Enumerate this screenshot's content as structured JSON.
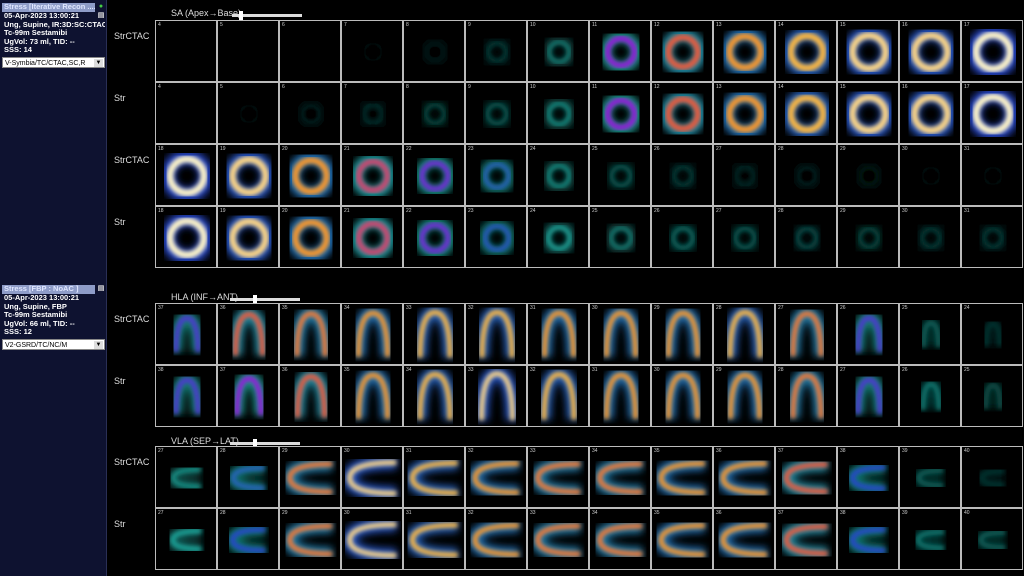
{
  "studies": [
    {
      "header": "Stress [Iterative Recon ....",
      "date": "05-Apr-2023 13:00:21",
      "line2": "Ung, Supine, IR:3D:SC:CTAC",
      "line3": "Tc-99m Sestamibi",
      "line4": "UgVol: 73 ml, TID: --",
      "line5": "SSS: 14",
      "select": "V-Symbia/TC/CTAC,SC,R"
    },
    {
      "header": "Stress [FBP : NoAC ]",
      "date": "05-Apr-2023 13:00:21",
      "line2": "Ung, Supine, FBP",
      "line3": "Tc-99m Sestamibi",
      "line4": "UgVol: 66 ml, TID: --",
      "line5": "SSS: 12",
      "select": "V2-GSRD/TC/NC/M"
    }
  ],
  "sections": [
    {
      "title": "SA (Apex→Base)",
      "slider": 0.1,
      "shape": "ring",
      "rows": [
        {
          "label": "StrCTAC",
          "frames": [
            4,
            5,
            6,
            7,
            8,
            9,
            10,
            11,
            12,
            13,
            14,
            15,
            16,
            17
          ],
          "intensity": [
            0,
            0,
            0,
            0.02,
            0.04,
            0.1,
            0.22,
            0.6,
            0.75,
            0.85,
            0.9,
            0.95,
            0.95,
            1
          ]
        },
        {
          "label": "Str",
          "frames": [
            4,
            5,
            6,
            7,
            8,
            9,
            10,
            11,
            12,
            13,
            14,
            15,
            16,
            17
          ],
          "intensity": [
            0,
            0.02,
            0.05,
            0.08,
            0.12,
            0.15,
            0.25,
            0.6,
            0.75,
            0.85,
            0.9,
            0.95,
            0.95,
            1
          ]
        },
        {
          "label": "StrCTAC",
          "frames": [
            18,
            19,
            20,
            21,
            22,
            23,
            24,
            25,
            26,
            27,
            28,
            29,
            30,
            31
          ],
          "intensity": [
            1,
            0.95,
            0.85,
            0.7,
            0.55,
            0.4,
            0.25,
            0.15,
            0.1,
            0.07,
            0.05,
            0.03,
            0.02,
            0.02
          ]
        },
        {
          "label": "Str",
          "frames": [
            18,
            19,
            20,
            21,
            22,
            23,
            24,
            25,
            26,
            27,
            28,
            29,
            30,
            31
          ],
          "intensity": [
            1,
            0.95,
            0.85,
            0.7,
            0.55,
            0.42,
            0.3,
            0.22,
            0.18,
            0.15,
            0.13,
            0.12,
            0.1,
            0.1
          ]
        }
      ]
    },
    {
      "title": "HLA (INF→ANT)",
      "slider": 0.35,
      "shape": "arch",
      "rows": [
        {
          "label": "StrCTAC",
          "frames": [
            37,
            36,
            35,
            34,
            33,
            32,
            31,
            30,
            29,
            28,
            27,
            26,
            25,
            24
          ],
          "intensity": [
            0.5,
            0.75,
            0.8,
            0.85,
            0.9,
            0.9,
            0.85,
            0.85,
            0.85,
            0.9,
            0.8,
            0.5,
            0.15,
            0.08
          ]
        },
        {
          "label": "Str",
          "frames": [
            38,
            37,
            36,
            35,
            34,
            33,
            32,
            31,
            30,
            29,
            28,
            27,
            26,
            25
          ],
          "intensity": [
            0.5,
            0.6,
            0.75,
            0.85,
            0.9,
            0.95,
            0.9,
            0.85,
            0.85,
            0.85,
            0.8,
            0.5,
            0.2,
            0.12
          ]
        }
      ]
    },
    {
      "title": "VLA (SEP→LAT)",
      "slider": 0.35,
      "shape": "cup",
      "rows": [
        {
          "label": "StrCTAC",
          "frames": [
            27,
            28,
            29,
            30,
            31,
            32,
            33,
            34,
            35,
            36,
            37,
            38,
            39,
            40
          ],
          "intensity": [
            0.25,
            0.4,
            0.8,
            0.95,
            0.9,
            0.85,
            0.8,
            0.8,
            0.85,
            0.85,
            0.75,
            0.45,
            0.15,
            0.08
          ]
        },
        {
          "label": "Str",
          "frames": [
            27,
            28,
            29,
            30,
            31,
            32,
            33,
            34,
            35,
            36,
            37,
            38,
            39,
            40
          ],
          "intensity": [
            0.3,
            0.45,
            0.8,
            0.95,
            0.9,
            0.85,
            0.8,
            0.8,
            0.85,
            0.85,
            0.75,
            0.45,
            0.2,
            0.15
          ]
        }
      ]
    }
  ]
}
